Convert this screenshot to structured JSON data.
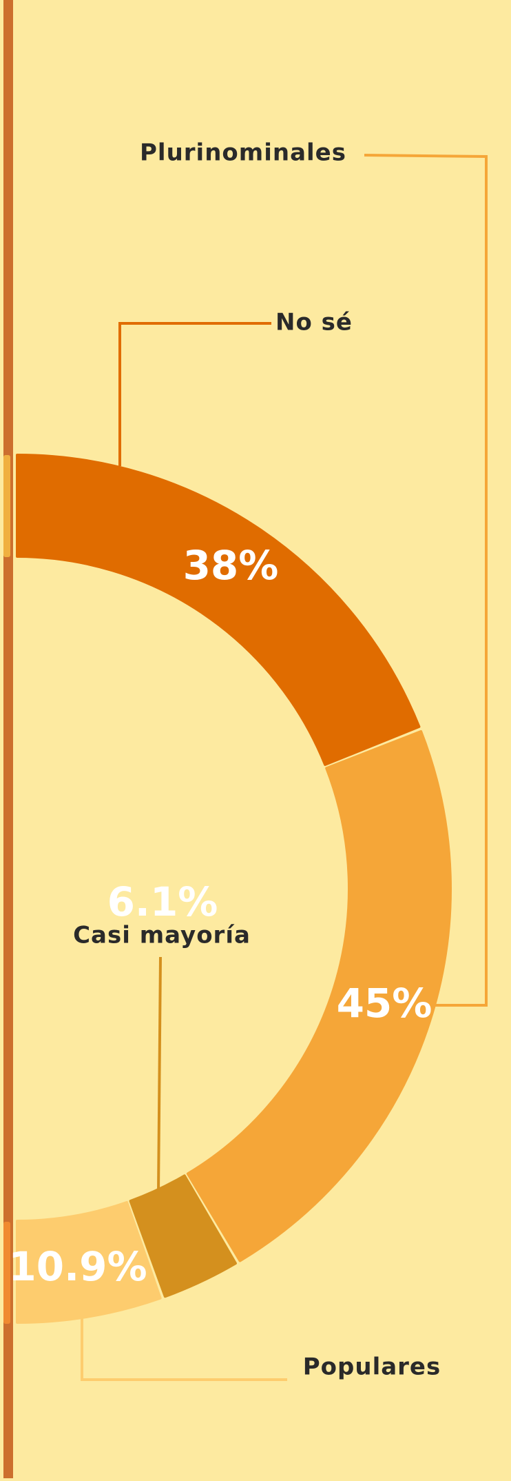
{
  "chart_data": {
    "type": "pie",
    "categories": [
      "No sé",
      "Plurinominales",
      "Casi mayoría",
      "Populares"
    ],
    "values": [
      38,
      45,
      6.1,
      10.9
    ],
    "value_labels": [
      "38%",
      "45%",
      "6.1%",
      "10.9%"
    ],
    "colors": [
      "#e06c00",
      "#f5a638",
      "#d4901e",
      "#fdcc6e"
    ]
  }
}
